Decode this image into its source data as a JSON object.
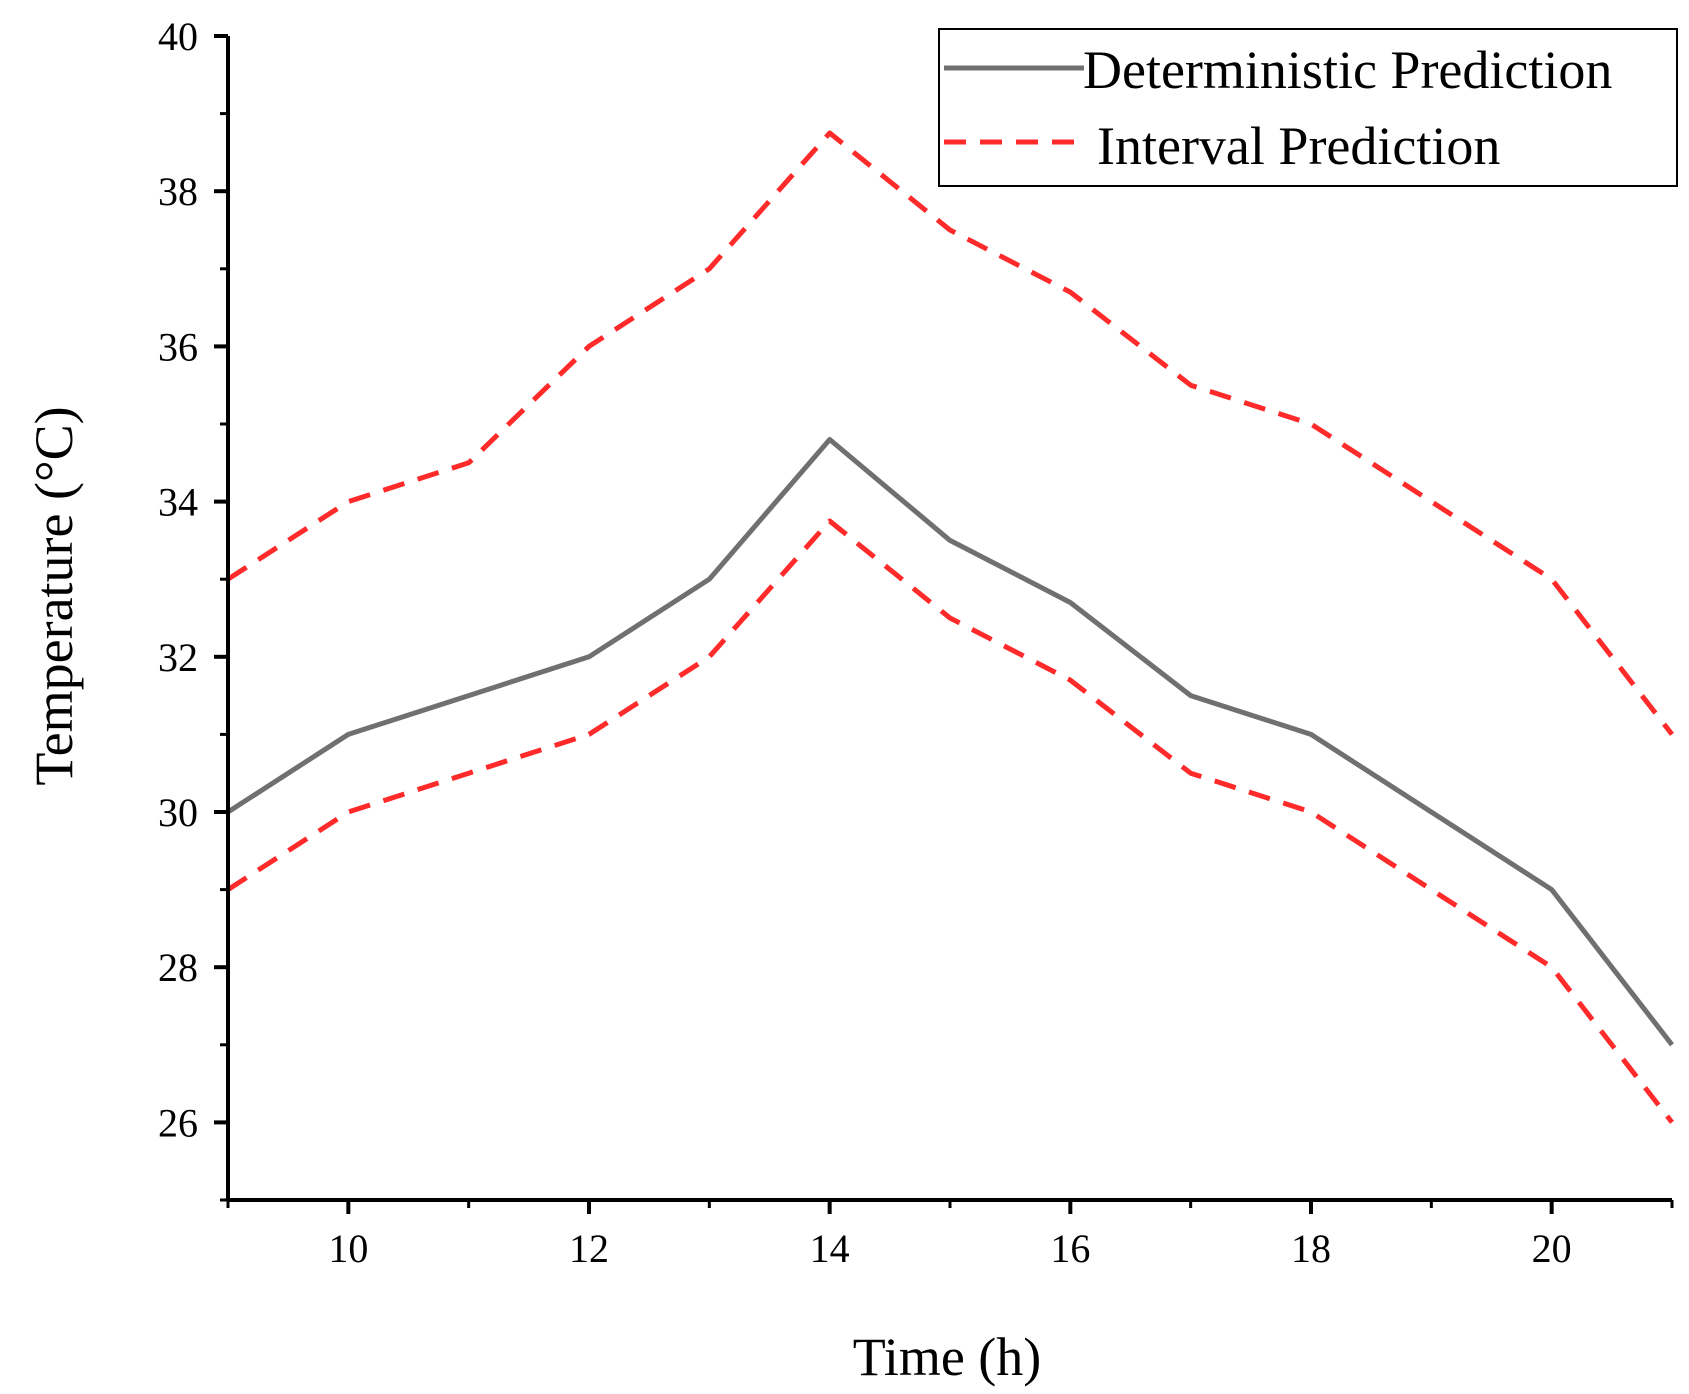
{
  "chart_data": {
    "type": "line",
    "title": "",
    "xlabel": "Time (h)",
    "ylabel": "Temperature (°C)",
    "xlim": [
      9,
      21
    ],
    "ylim": [
      25,
      40
    ],
    "x_ticks": [
      10,
      12,
      14,
      16,
      18,
      20
    ],
    "y_ticks": [
      26,
      28,
      30,
      32,
      34,
      36,
      38,
      40
    ],
    "x_minor_ticks": [
      9,
      11,
      13,
      15,
      17,
      19,
      21
    ],
    "y_minor_ticks": [
      25,
      27,
      29,
      31,
      33,
      35,
      37,
      39
    ],
    "x": [
      9,
      10,
      11,
      12,
      13,
      14,
      15,
      16,
      17,
      18,
      19,
      20,
      21
    ],
    "series": [
      {
        "name": "Deterministic Prediction",
        "style": "solid",
        "color": "#707070",
        "values": [
          30,
          31,
          31.5,
          32,
          33,
          34.8,
          33.5,
          32.7,
          31.5,
          31,
          30,
          29,
          27
        ]
      },
      {
        "name": "Interval Prediction",
        "style": "dashed",
        "color": "#ff2a2a",
        "band": "upper",
        "values": [
          33,
          34,
          34.5,
          36,
          37,
          38.75,
          37.5,
          36.7,
          35.5,
          35,
          34,
          33,
          31
        ]
      },
      {
        "name": "Interval Prediction",
        "style": "dashed",
        "color": "#ff2a2a",
        "band": "lower",
        "values": [
          29,
          30,
          30.5,
          31,
          32,
          33.75,
          32.5,
          31.7,
          30.5,
          30,
          29,
          28,
          26
        ]
      }
    ],
    "legend": {
      "position": "top-right",
      "entries": [
        {
          "label": "Deterministic Prediction",
          "style": "solid",
          "color": "#707070"
        },
        {
          "label": "Interval Prediction",
          "style": "dashed",
          "color": "#ff2a2a"
        }
      ]
    },
    "grid": false
  }
}
